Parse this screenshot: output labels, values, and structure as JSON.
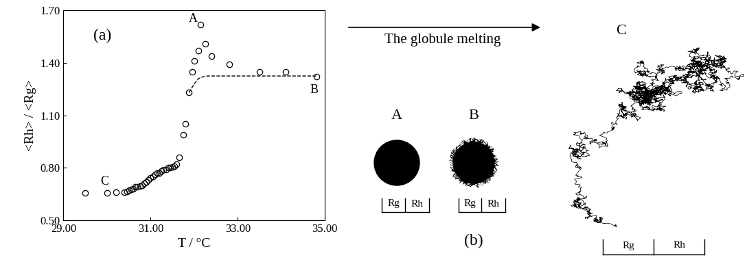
{
  "chart_data": {
    "type": "scatter",
    "xlabel": "T / °C",
    "ylabel": "<Rh> / <Rg>",
    "annotations": [
      "(a)",
      "A",
      "B",
      "C"
    ],
    "x": [
      29.5,
      30.0,
      30.2,
      30.4,
      30.45,
      30.5,
      30.55,
      30.6,
      30.65,
      30.7,
      30.75,
      30.8,
      30.85,
      30.9,
      30.95,
      31.0,
      31.05,
      31.1,
      31.15,
      31.2,
      31.25,
      31.3,
      31.35,
      31.4,
      31.45,
      31.5,
      31.55,
      31.6,
      31.65,
      31.75,
      31.8,
      31.88,
      31.95,
      32.0,
      32.1,
      32.15,
      32.25,
      32.4,
      32.8,
      33.5,
      34.1,
      34.8
    ],
    "values": [
      0.655,
      0.655,
      0.66,
      0.66,
      0.665,
      0.67,
      0.675,
      0.68,
      0.69,
      0.69,
      0.695,
      0.7,
      0.71,
      0.72,
      0.73,
      0.74,
      0.75,
      0.76,
      0.77,
      0.77,
      0.78,
      0.79,
      0.79,
      0.8,
      0.8,
      0.805,
      0.81,
      0.82,
      0.86,
      0.99,
      1.05,
      1.23,
      1.35,
      1.41,
      1.47,
      1.62,
      1.51,
      1.44,
      1.39,
      1.35,
      1.35,
      1.32
    ],
    "marker": "circle",
    "color": "#000000",
    "line": {
      "x": [
        31.88,
        32.0,
        32.1,
        32.2,
        32.3,
        34.8
      ],
      "values": [
        1.23,
        1.28,
        1.31,
        1.32,
        1.325,
        1.325
      ],
      "line_style": "dashed",
      "color": "#000000"
    },
    "xlim": [
      29,
      35
    ],
    "xticks": [
      {
        "value": 29,
        "label": "29.00"
      },
      {
        "value": 31,
        "label": "31.00"
      },
      {
        "value": 33,
        "label": "33.00"
      },
      {
        "value": 35,
        "label": "35.00"
      }
    ],
    "ylim": [
      0.5,
      1.7
    ],
    "yticks": [
      {
        "value": 0.5,
        "label": "0.50"
      },
      {
        "value": 0.8,
        "label": "0.80"
      },
      {
        "value": 1.1,
        "label": "1.10"
      },
      {
        "value": 1.4,
        "label": "1.40"
      },
      {
        "value": 1.7,
        "label": "1.70"
      }
    ],
    "grid": false
  },
  "diagram": {
    "arrow_label": "The globule melting",
    "panel_label": "(b)",
    "states": [
      {
        "label": "A",
        "scale_labels": [
          "Rg",
          "Rh"
        ]
      },
      {
        "label": "B",
        "scale_labels": [
          "Rg",
          "Rh"
        ]
      },
      {
        "label": "C",
        "scale_labels": [
          "Rg",
          "Rh"
        ]
      }
    ]
  }
}
